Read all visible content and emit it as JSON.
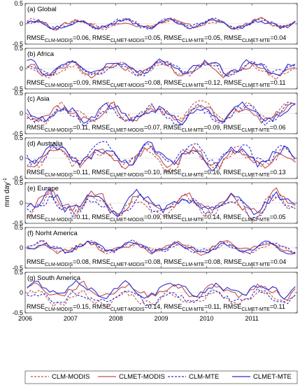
{
  "chart_data": {
    "type": "line",
    "ylabel": "mm day",
    "ylabel_superscript": "-1",
    "xlim": [
      2006,
      2012
    ],
    "x_ticks": [
      "2006",
      "2007",
      "2008",
      "2009",
      "2010",
      "2011"
    ],
    "ylim": [
      -0.5,
      0.5
    ],
    "y_ticks": [
      "0.5",
      "0",
      "-0.5"
    ],
    "grid": false,
    "legend_position": "bottom",
    "legend": [
      {
        "name": "CLM-MODIS",
        "color": "#c0504d",
        "style": "dashed"
      },
      {
        "name": "CLMET-MODIS",
        "color": "#c0504d",
        "style": "solid"
      },
      {
        "name": "CLM-MTE",
        "color": "#2f2fd0",
        "style": "dashed"
      },
      {
        "name": "CLMET-MTE",
        "color": "#2f2fd0",
        "style": "solid"
      }
    ],
    "panels": [
      {
        "label": "(a) Global",
        "rmse": [
          "0.06",
          "0.05",
          "0.05",
          "0.04"
        ],
        "amp": 0.1,
        "bias": [
          0.0,
          0.0,
          0.0,
          0.0
        ],
        "seed": 1
      },
      {
        "label": "(b) Africa",
        "rmse": [
          "0.09",
          "0.08",
          "0.12",
          "0.11"
        ],
        "amp": 0.15,
        "bias": [
          -0.03,
          -0.02,
          0.02,
          0.03
        ],
        "seed": 2
      },
      {
        "label": "(c) Asia",
        "rmse": [
          "0.11",
          "0.07",
          "0.09",
          "0.06"
        ],
        "amp": 0.2,
        "bias": [
          0.0,
          0.0,
          -0.03,
          0.0
        ],
        "seed": 3
      },
      {
        "label": "(d) Australia",
        "rmse": [
          "0.11",
          "0.10",
          "0.16",
          "0.13"
        ],
        "amp": 0.22,
        "bias": [
          0.0,
          0.02,
          0.08,
          0.05
        ],
        "seed": 4
      },
      {
        "label": "(e) Europe",
        "rmse": [
          "0.11",
          "0.09",
          "0.14",
          "0.05"
        ],
        "amp": 0.22,
        "bias": [
          -0.05,
          0.0,
          -0.08,
          0.0
        ],
        "seed": 5
      },
      {
        "label": "(f) Norht America",
        "rmse": [
          "0.08",
          "0.08",
          "0.08",
          "0.04"
        ],
        "amp": 0.12,
        "bias": [
          0.0,
          0.0,
          0.0,
          0.0
        ],
        "seed": 6
      },
      {
        "label": "(g) South America",
        "rmse": [
          "0.15",
          "0.14",
          "0.11",
          "0.11"
        ],
        "amp": 0.15,
        "bias": [
          -0.15,
          0.05,
          -0.12,
          0.08
        ],
        "seed": 7
      }
    ],
    "rmse_prefix": "RMSE",
    "rmse_subscripts": [
      "CLM-MODIS",
      "CLMET-MODIS",
      "CLM-MTE",
      "CLMET-MTE"
    ]
  }
}
